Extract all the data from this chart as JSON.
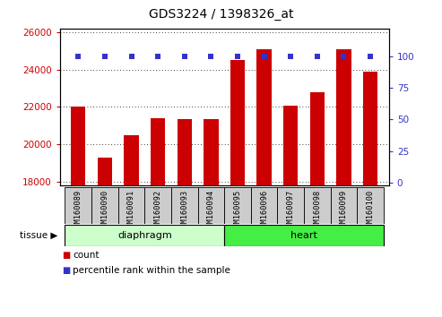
{
  "title": "GDS3224 / 1398326_at",
  "samples": [
    "GSM160089",
    "GSM160090",
    "GSM160091",
    "GSM160092",
    "GSM160093",
    "GSM160094",
    "GSM160095",
    "GSM160096",
    "GSM160097",
    "GSM160098",
    "GSM160099",
    "GSM160100"
  ],
  "counts": [
    22000,
    19300,
    20500,
    21400,
    21350,
    21350,
    24500,
    25100,
    22050,
    22800,
    25100,
    23900
  ],
  "percentiles": [
    100,
    100,
    100,
    100,
    100,
    100,
    100,
    100,
    100,
    100,
    100,
    100
  ],
  "bar_color": "#cc0000",
  "dot_color": "#3333cc",
  "ylim_left": [
    17800,
    26200
  ],
  "ylim_right": [
    -2.2,
    122
  ],
  "yticks_left": [
    18000,
    20000,
    22000,
    24000,
    26000
  ],
  "yticks_right": [
    0,
    25,
    50,
    75,
    100
  ],
  "groups": [
    {
      "label": "diaphragm",
      "start": 0,
      "end": 6,
      "color": "#ccffcc",
      "edge_color": "#000000"
    },
    {
      "label": "heart",
      "start": 6,
      "end": 12,
      "color": "#44ee44",
      "edge_color": "#000000"
    }
  ],
  "tissue_label": "tissue",
  "legend_count_label": "count",
  "legend_percentile_label": "percentile rank within the sample",
  "tick_label_color_left": "#cc0000",
  "tick_label_color_right": "#3333cc",
  "xlabel_bg": "#cccccc"
}
